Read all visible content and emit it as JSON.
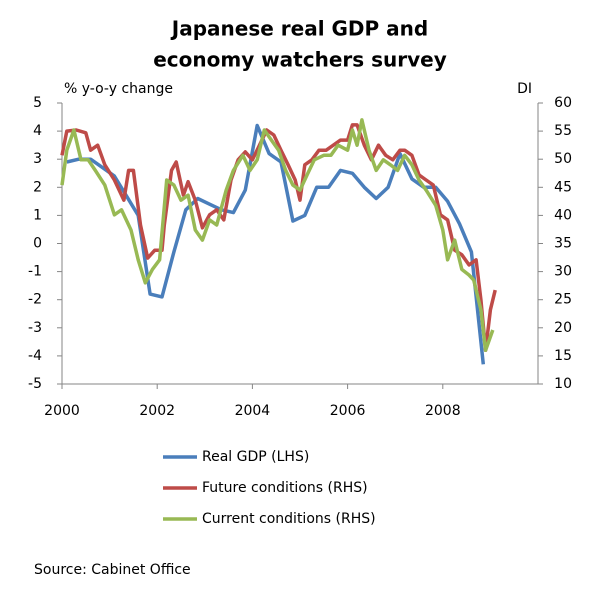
{
  "chart_data": {
    "type": "line",
    "title": [
      "Japanese real GDP and",
      "economy watchers survey"
    ],
    "y_label": "% y-o-y change",
    "y2_label": "DI",
    "source": "Source: Cabinet Office",
    "xlim": [
      2000,
      2010
    ],
    "xticks": [
      2000,
      2002,
      2004,
      2006,
      2008
    ],
    "ylim": [
      -5,
      5
    ],
    "yticks": [
      -5,
      -4,
      -3,
      -2,
      -1,
      0,
      1,
      2,
      3,
      4,
      5
    ],
    "y2lim": [
      10,
      60
    ],
    "y2ticks": [
      10,
      15,
      20,
      25,
      30,
      35,
      40,
      45,
      50,
      55,
      60
    ],
    "grid": false,
    "legend": "bottom",
    "series": [
      {
        "name": "Real GDP (LHS)",
        "color": "#4a7ebb",
        "axis": "y",
        "x": [
          2000.1,
          2000.35,
          2000.6,
          2000.85,
          2001.1,
          2001.35,
          2001.6,
          2001.85,
          2002.1,
          2002.35,
          2002.6,
          2002.85,
          2003.1,
          2003.35,
          2003.6,
          2003.85,
          2004.1,
          2004.35,
          2004.6,
          2004.85,
          2005.1,
          2005.35,
          2005.6,
          2005.85,
          2006.1,
          2006.35,
          2006.6,
          2006.85,
          2007.1,
          2007.35,
          2007.6,
          2007.85,
          2008.1,
          2008.35,
          2008.6,
          2008.85
        ],
        "values": [
          2.9,
          3.0,
          3.0,
          2.7,
          2.4,
          1.7,
          1.0,
          -1.8,
          -1.9,
          -0.3,
          1.2,
          1.6,
          1.4,
          1.2,
          1.1,
          1.9,
          4.2,
          3.2,
          2.9,
          0.8,
          1.0,
          2.0,
          2.0,
          2.6,
          2.5,
          2.0,
          1.6,
          2.0,
          3.2,
          2.3,
          2.0,
          2.0,
          1.5,
          0.7,
          -0.3,
          -4.3
        ]
      },
      {
        "name": "Future conditions (RHS)",
        "color": "#be4b48",
        "axis": "y2",
        "x": [
          2000.0,
          2000.1,
          2000.3,
          2000.5,
          2000.6,
          2000.75,
          2000.9,
          2001.1,
          2001.3,
          2001.4,
          2001.5,
          2001.65,
          2001.8,
          2001.95,
          2002.1,
          2002.15,
          2002.3,
          2002.4,
          2002.55,
          2002.65,
          2002.8,
          2002.95,
          2003.1,
          2003.25,
          2003.4,
          2003.55,
          2003.7,
          2003.85,
          2004.0,
          2004.15,
          2004.3,
          2004.45,
          2004.6,
          2004.75,
          2004.9,
          2005.0,
          2005.1,
          2005.25,
          2005.4,
          2005.55,
          2005.7,
          2005.85,
          2006.0,
          2006.1,
          2006.2,
          2006.35,
          2006.5,
          2006.65,
          2006.8,
          2006.95,
          2007.1,
          2007.2,
          2007.35,
          2007.5,
          2007.65,
          2007.8,
          2007.95,
          2008.1,
          2008.25,
          2008.4,
          2008.55,
          2008.7,
          2008.8,
          2008.9,
          2009.0,
          2009.1
        ],
        "values": [
          50.7,
          55,
          55.2,
          54.7,
          51.6,
          52.5,
          49,
          46.3,
          42.7,
          48,
          48,
          38.3,
          32.4,
          33.8,
          33.8,
          38.3,
          48,
          49.5,
          43.6,
          46,
          42.7,
          37.8,
          40.1,
          41,
          39.2,
          46.3,
          49.9,
          51.3,
          49.9,
          52.5,
          55.2,
          54.3,
          51.6,
          49,
          46.3,
          42.7,
          49,
          49.9,
          51.6,
          51.6,
          52.5,
          53.4,
          53.4,
          56.1,
          56.1,
          52.5,
          49.9,
          52.5,
          50.7,
          49.9,
          51.6,
          51.6,
          50.7,
          47.2,
          46.3,
          45.4,
          40.1,
          39.2,
          33.8,
          33,
          31.2,
          32.1,
          25,
          16,
          23.2,
          26.7
        ]
      },
      {
        "name": "Current conditions (RHS)",
        "color": "#98b954",
        "axis": "y2",
        "x": [
          2000.0,
          2000.1,
          2000.25,
          2000.4,
          2000.55,
          2000.7,
          2000.9,
          2001.1,
          2001.25,
          2001.45,
          2001.6,
          2001.75,
          2001.9,
          2002.05,
          2002.2,
          2002.35,
          2002.5,
          2002.65,
          2002.8,
          2002.95,
          2003.1,
          2003.25,
          2003.45,
          2003.6,
          2003.8,
          2003.95,
          2004.1,
          2004.25,
          2004.4,
          2004.55,
          2004.7,
          2004.85,
          2005.0,
          2005.15,
          2005.3,
          2005.5,
          2005.65,
          2005.8,
          2006.0,
          2006.1,
          2006.2,
          2006.3,
          2006.45,
          2006.6,
          2006.75,
          2006.9,
          2007.05,
          2007.2,
          2007.35,
          2007.5,
          2007.65,
          2007.85,
          2008.0,
          2008.1,
          2008.25,
          2008.4,
          2008.55,
          2008.65,
          2008.8,
          2008.9,
          2009.05
        ],
        "values": [
          45.4,
          51.6,
          55.2,
          49.9,
          49.9,
          48,
          45.4,
          40.1,
          41,
          37.4,
          32.1,
          28,
          30.4,
          32.1,
          46.3,
          45.4,
          42.7,
          43.6,
          37.4,
          35.6,
          39.2,
          38.3,
          44.5,
          48,
          50.7,
          48,
          49.9,
          55.2,
          53.4,
          51.6,
          48,
          45.4,
          44.5,
          47.2,
          49.9,
          50.7,
          50.7,
          52.5,
          51.6,
          55.2,
          52.5,
          57,
          51.6,
          48,
          49.9,
          49,
          48,
          50.7,
          49,
          46.3,
          44.5,
          41.8,
          37.4,
          32.1,
          35.6,
          30.4,
          29.4,
          28.5,
          23.2,
          16,
          19.6
        ]
      }
    ]
  }
}
